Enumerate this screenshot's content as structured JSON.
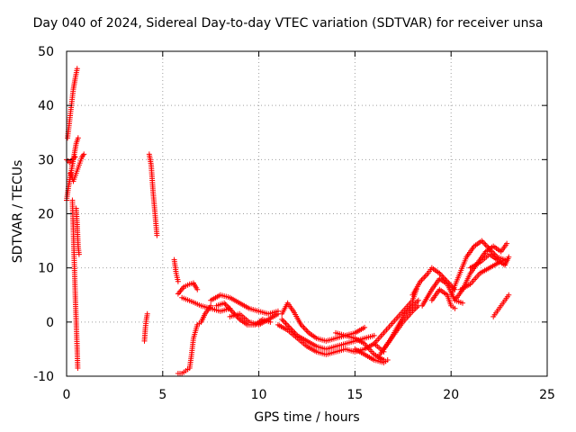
{
  "chart_data": {
    "type": "scatter",
    "title": "Day 040 of 2024, Sidereal Day-to-day VTEC variation (SDTVAR) for receiver unsa",
    "xlabel": "GPS time / hours",
    "ylabel": "SDTVAR / TECUs",
    "xlim": [
      0,
      25
    ],
    "ylim": [
      -10,
      50
    ],
    "xticks": [
      "0",
      "5",
      "10",
      "15",
      "20",
      "25"
    ],
    "yticks": [
      "-10",
      "0",
      "10",
      "20",
      "30",
      "40",
      "50"
    ],
    "grid": true,
    "marker": "+",
    "color": "#ff0000",
    "tracks": [
      [
        [
          0.0,
          22.5
        ],
        [
          0.1,
          25
        ],
        [
          0.2,
          27
        ],
        [
          0.3,
          29
        ],
        [
          0.4,
          31
        ],
        [
          0.5,
          33
        ],
        [
          0.6,
          34
        ]
      ],
      [
        [
          0.05,
          34
        ],
        [
          0.15,
          37
        ],
        [
          0.25,
          40
        ],
        [
          0.35,
          43
        ],
        [
          0.45,
          45
        ],
        [
          0.55,
          46.8
        ]
      ],
      [
        [
          0.2,
          27.5
        ],
        [
          0.35,
          26
        ],
        [
          0.5,
          27.5
        ],
        [
          0.65,
          29
        ],
        [
          0.8,
          30.5
        ],
        [
          0.9,
          31
        ]
      ],
      [
        [
          0.0,
          30
        ],
        [
          0.15,
          29.5
        ],
        [
          0.3,
          30
        ],
        [
          0.45,
          30.5
        ]
      ],
      [
        [
          0.3,
          22.5
        ],
        [
          0.35,
          17
        ],
        [
          0.4,
          11
        ],
        [
          0.45,
          5
        ],
        [
          0.5,
          0
        ],
        [
          0.55,
          -5
        ],
        [
          0.58,
          -8.5
        ]
      ],
      [
        [
          0.5,
          21
        ],
        [
          0.55,
          18
        ],
        [
          0.6,
          14
        ],
        [
          0.65,
          12.5
        ]
      ],
      [
        [
          4.3,
          31
        ],
        [
          4.4,
          29
        ],
        [
          4.5,
          24
        ],
        [
          4.6,
          20
        ],
        [
          4.7,
          16
        ]
      ],
      [
        [
          4.05,
          -3.5
        ],
        [
          4.1,
          -1
        ],
        [
          4.15,
          0.5
        ],
        [
          4.2,
          1.5
        ]
      ],
      [
        [
          5.6,
          11.5
        ],
        [
          5.7,
          9
        ],
        [
          5.8,
          7.5
        ]
      ],
      [
        [
          5.8,
          -9.5
        ],
        [
          6.0,
          -9.5
        ],
        [
          6.2,
          -9
        ],
        [
          6.4,
          -8.5
        ],
        [
          6.5,
          -6
        ],
        [
          6.6,
          -3
        ],
        [
          6.8,
          -0.5
        ],
        [
          7.0,
          0
        ],
        [
          7.2,
          1.5
        ],
        [
          7.5,
          3
        ]
      ],
      [
        [
          5.8,
          5.2
        ],
        [
          6.1,
          6.5
        ],
        [
          6.4,
          7
        ],
        [
          6.6,
          7.2
        ],
        [
          6.8,
          6
        ]
      ],
      [
        [
          6.0,
          4.5
        ],
        [
          6.5,
          3.8
        ],
        [
          7.0,
          3
        ],
        [
          7.5,
          2.5
        ],
        [
          8.0,
          2
        ],
        [
          8.5,
          2.5
        ]
      ],
      [
        [
          7.5,
          4
        ],
        [
          8.0,
          5
        ],
        [
          8.5,
          4.5
        ],
        [
          9.0,
          3.5
        ],
        [
          9.5,
          2.5
        ],
        [
          10.0,
          2
        ],
        [
          10.5,
          1.5
        ],
        [
          11.0,
          2
        ]
      ],
      [
        [
          7.8,
          3
        ],
        [
          8.2,
          3.5
        ],
        [
          8.6,
          2
        ],
        [
          9.0,
          0.5
        ],
        [
          9.4,
          -0.5
        ],
        [
          9.8,
          -0.5
        ],
        [
          10.2,
          0.5
        ],
        [
          10.6,
          0
        ]
      ],
      [
        [
          8.5,
          1
        ],
        [
          9.0,
          1.5
        ],
        [
          9.5,
          0
        ],
        [
          10.0,
          -0.5
        ],
        [
          10.5,
          0.5
        ],
        [
          11.0,
          1.5
        ]
      ],
      [
        [
          11.2,
          1.5
        ],
        [
          11.5,
          3.5
        ],
        [
          11.8,
          2
        ],
        [
          12.2,
          -0.5
        ],
        [
          12.6,
          -2
        ],
        [
          13.0,
          -3
        ],
        [
          13.5,
          -3.5
        ],
        [
          14.0,
          -3
        ],
        [
          14.5,
          -2.5
        ],
        [
          15.0,
          -2
        ],
        [
          15.5,
          -1
        ]
      ],
      [
        [
          11.2,
          0.5
        ],
        [
          11.6,
          -1
        ],
        [
          12.0,
          -2.5
        ],
        [
          12.5,
          -3.5
        ],
        [
          13.0,
          -4.5
        ],
        [
          13.5,
          -5
        ],
        [
          14.0,
          -4.5
        ],
        [
          14.5,
          -4
        ],
        [
          15.0,
          -3.5
        ],
        [
          15.5,
          -3
        ],
        [
          16.0,
          -2.5
        ]
      ],
      [
        [
          11.0,
          -0.5
        ],
        [
          11.5,
          -1.5
        ],
        [
          12.0,
          -3
        ],
        [
          12.5,
          -4.5
        ],
        [
          13.0,
          -5.5
        ],
        [
          13.5,
          -6
        ],
        [
          14.0,
          -5.5
        ],
        [
          14.5,
          -5
        ],
        [
          15.0,
          -5.5
        ],
        [
          15.5,
          -5
        ],
        [
          16.0,
          -4
        ],
        [
          16.5,
          -5.5
        ]
      ],
      [
        [
          14.0,
          -2
        ],
        [
          14.5,
          -2.5
        ],
        [
          15.0,
          -3
        ],
        [
          15.5,
          -4
        ],
        [
          16.0,
          -6
        ],
        [
          16.5,
          -7
        ]
      ],
      [
        [
          15.0,
          -5
        ],
        [
          15.5,
          -6
        ],
        [
          16.0,
          -7
        ],
        [
          16.5,
          -7.5
        ],
        [
          16.7,
          -7
        ]
      ],
      [
        [
          16.0,
          -4
        ],
        [
          16.5,
          -2
        ],
        [
          17.0,
          0
        ],
        [
          17.5,
          2
        ],
        [
          18.0,
          4
        ],
        [
          18.2,
          6
        ]
      ],
      [
        [
          16.3,
          -6
        ],
        [
          16.8,
          -3.5
        ],
        [
          17.2,
          -1
        ],
        [
          17.6,
          1.5
        ],
        [
          18.0,
          3
        ],
        [
          18.3,
          4
        ]
      ],
      [
        [
          16.5,
          -5
        ],
        [
          17.0,
          -2.5
        ],
        [
          17.5,
          0
        ],
        [
          18.0,
          2
        ],
        [
          18.3,
          3
        ]
      ],
      [
        [
          18.0,
          5
        ],
        [
          18.4,
          7.5
        ],
        [
          18.8,
          9
        ],
        [
          19.0,
          10
        ],
        [
          19.4,
          9
        ],
        [
          19.8,
          7.5
        ],
        [
          20.2,
          6
        ]
      ],
      [
        [
          18.5,
          3
        ],
        [
          19.0,
          6
        ],
        [
          19.4,
          8
        ],
        [
          19.8,
          7
        ],
        [
          20.2,
          4
        ],
        [
          20.6,
          3.5
        ]
      ],
      [
        [
          19.0,
          4
        ],
        [
          19.4,
          6
        ],
        [
          19.8,
          5
        ],
        [
          20.0,
          3
        ],
        [
          20.2,
          2.5
        ]
      ],
      [
        [
          20.0,
          5
        ],
        [
          20.4,
          8.5
        ],
        [
          20.8,
          12
        ],
        [
          21.2,
          14
        ],
        [
          21.6,
          15
        ],
        [
          22.0,
          13.5
        ],
        [
          22.4,
          12
        ],
        [
          22.8,
          11.5
        ]
      ],
      [
        [
          20.2,
          4
        ],
        [
          20.6,
          6
        ],
        [
          21.0,
          9
        ],
        [
          21.4,
          11
        ],
        [
          21.8,
          13
        ],
        [
          22.2,
          14
        ],
        [
          22.6,
          13
        ],
        [
          22.9,
          14.5
        ]
      ],
      [
        [
          20.5,
          6
        ],
        [
          21.0,
          7
        ],
        [
          21.5,
          9
        ],
        [
          22.0,
          10
        ],
        [
          22.5,
          11
        ],
        [
          22.8,
          11.5
        ]
      ],
      [
        [
          21.0,
          10
        ],
        [
          21.5,
          11
        ],
        [
          22.0,
          12.5
        ],
        [
          22.4,
          11.5
        ],
        [
          22.8,
          10.5
        ],
        [
          23.0,
          12
        ]
      ],
      [
        [
          22.2,
          1
        ],
        [
          22.4,
          2
        ],
        [
          22.6,
          3
        ],
        [
          22.8,
          4
        ],
        [
          23.0,
          5
        ]
      ]
    ]
  }
}
